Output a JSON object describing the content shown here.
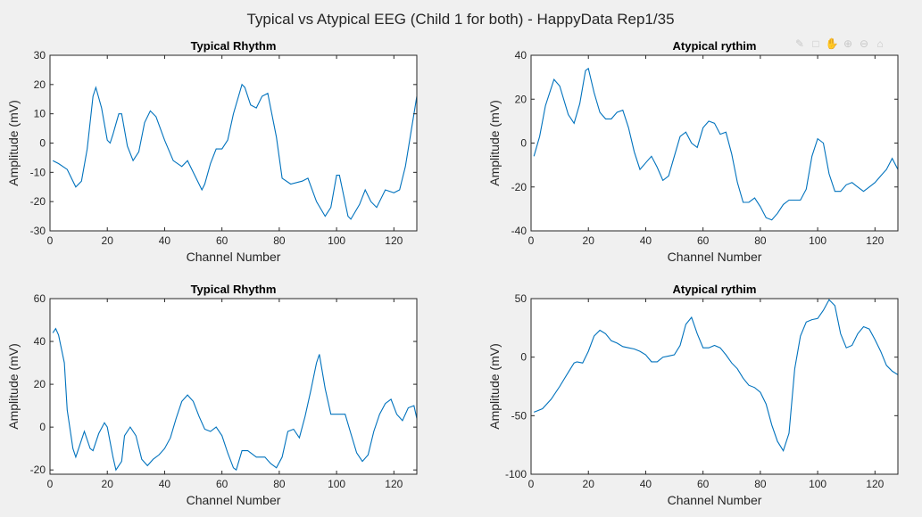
{
  "figure": {
    "title": "Typical vs Atypical EEG (Child 1 for both) - HappyData Rep1/35"
  },
  "toolbar": {
    "icons": [
      "brush-icon",
      "datatip-icon",
      "pan-icon",
      "zoom-in-icon",
      "zoom-out-icon",
      "home-icon"
    ]
  },
  "colors": {
    "line": "#0072bd",
    "axes_bg": "#ffffff",
    "figure_bg": "#f0f0f0"
  },
  "chart_data": [
    {
      "type": "line",
      "title": "Typical Rhythm",
      "xlabel": "Channel Number",
      "ylabel": "Amplitude (mV)",
      "xlim": [
        0,
        128
      ],
      "ylim": [
        -30,
        30
      ],
      "xticks": [
        0,
        20,
        40,
        60,
        80,
        100,
        120
      ],
      "yticks": [
        -30,
        -20,
        -10,
        0,
        10,
        20,
        30
      ],
      "series": [
        {
          "x": [
            1,
            3,
            6,
            9,
            11,
            13,
            15,
            16,
            18,
            20,
            21,
            22,
            24,
            25,
            27,
            29,
            31,
            33,
            35,
            37,
            40,
            43,
            46,
            48,
            50,
            53,
            54,
            56,
            58,
            60,
            62,
            64,
            67,
            68,
            70,
            72,
            74,
            76,
            79,
            81,
            84,
            88,
            90,
            93,
            96,
            98,
            100,
            101,
            104,
            105,
            108,
            110,
            112,
            114,
            117,
            120,
            122,
            124,
            126,
            128
          ],
          "y": [
            -6,
            -7,
            -9,
            -15,
            -13,
            -2,
            16,
            19,
            12,
            1,
            0,
            3,
            10,
            10,
            -1,
            -6,
            -3,
            7,
            11,
            9,
            1,
            -6,
            -8,
            -6,
            -10,
            -16,
            -14,
            -7,
            -2,
            -2,
            1,
            10,
            20,
            19,
            13,
            12,
            16,
            17,
            2,
            -12,
            -14,
            -13,
            -12,
            -20,
            -25,
            -22,
            -11,
            -11,
            -25,
            -26,
            -21,
            -16,
            -20,
            -22,
            -16,
            -17,
            -16,
            -8,
            4,
            16
          ]
        }
      ]
    },
    {
      "type": "line",
      "title": "Atypical rythim",
      "xlabel": "Channel Number",
      "ylabel": "Amplitude (mV)",
      "xlim": [
        0,
        128
      ],
      "ylim": [
        -40,
        40
      ],
      "xticks": [
        0,
        20,
        40,
        60,
        80,
        100,
        120
      ],
      "yticks": [
        -40,
        -20,
        0,
        20,
        40
      ],
      "series": [
        {
          "x": [
            1,
            3,
            5,
            8,
            10,
            13,
            15,
            17,
            19,
            20,
            22,
            24,
            26,
            28,
            30,
            32,
            34,
            36,
            38,
            40,
            42,
            44,
            46,
            48,
            50,
            52,
            54,
            56,
            58,
            60,
            62,
            64,
            66,
            68,
            70,
            72,
            74,
            76,
            78,
            80,
            82,
            84,
            86,
            88,
            90,
            94,
            96,
            98,
            100,
            102,
            104,
            106,
            108,
            110,
            112,
            114,
            116,
            118,
            120,
            122,
            124,
            126,
            128
          ],
          "y": [
            -6,
            3,
            17,
            29,
            26,
            13,
            9,
            18,
            33,
            34,
            23,
            14,
            11,
            11,
            14,
            15,
            7,
            -4,
            -12,
            -9,
            -6,
            -11,
            -17,
            -15,
            -6,
            3,
            5,
            0,
            -2,
            7,
            10,
            9,
            4,
            5,
            -5,
            -18,
            -27,
            -27,
            -25,
            -29,
            -34,
            -35,
            -32,
            -28,
            -26,
            -26,
            -21,
            -6,
            2,
            0,
            -14,
            -22,
            -22,
            -19,
            -18,
            -20,
            -22,
            -20,
            -18,
            -15,
            -12,
            -7,
            -12
          ]
        }
      ]
    },
    {
      "type": "line",
      "title": "Typical Rhythm",
      "xlabel": "Channel Number",
      "ylabel": "Amplitude (mV)",
      "xlim": [
        0,
        128
      ],
      "ylim": [
        -22,
        60
      ],
      "xticks": [
        0,
        20,
        40,
        60,
        80,
        100,
        120
      ],
      "yticks": [
        -20,
        0,
        20,
        40,
        60
      ],
      "series": [
        {
          "x": [
            1,
            2,
            3,
            5,
            6,
            8,
            9,
            11,
            12,
            14,
            15,
            17,
            19,
            20,
            22,
            23,
            25,
            26,
            28,
            30,
            32,
            34,
            36,
            38,
            40,
            42,
            44,
            46,
            48,
            50,
            52,
            54,
            56,
            58,
            60,
            62,
            64,
            65,
            67,
            69,
            72,
            75,
            77,
            79,
            81,
            83,
            85,
            87,
            89,
            91,
            93,
            94,
            96,
            98,
            101,
            103,
            105,
            107,
            109,
            111,
            113,
            115,
            117,
            119,
            121,
            123,
            125,
            127,
            128
          ],
          "y": [
            44,
            46,
            43,
            30,
            8,
            -10,
            -14,
            -6,
            -2,
            -10,
            -11,
            -3,
            2,
            0,
            -14,
            -20,
            -16,
            -4,
            0,
            -4,
            -15,
            -18,
            -15,
            -13,
            -10,
            -5,
            4,
            12,
            15,
            12,
            5,
            -1,
            -2,
            0,
            -4,
            -12,
            -19,
            -20,
            -11,
            -11,
            -14,
            -14,
            -17,
            -19,
            -14,
            -2,
            -1,
            -5,
            5,
            17,
            30,
            34,
            18,
            6,
            6,
            6,
            -3,
            -12,
            -16,
            -13,
            -2,
            6,
            11,
            13,
            6,
            3,
            9,
            10,
            4
          ]
        }
      ]
    },
    {
      "type": "line",
      "title": "Atypical rythim",
      "xlabel": "Channel Number",
      "ylabel": "Amplitude (mV)",
      "xlim": [
        0,
        128
      ],
      "ylim": [
        -100,
        50
      ],
      "xticks": [
        0,
        20,
        40,
        60,
        80,
        100,
        120
      ],
      "yticks": [
        -100,
        -50,
        0,
        50
      ],
      "series": [
        {
          "x": [
            1,
            2,
            4,
            7,
            10,
            13,
            15,
            16,
            18,
            20,
            22,
            24,
            26,
            28,
            30,
            32,
            34,
            36,
            38,
            40,
            42,
            44,
            46,
            48,
            50,
            52,
            54,
            56,
            58,
            60,
            62,
            64,
            66,
            68,
            70,
            72,
            74,
            76,
            78,
            80,
            82,
            84,
            86,
            88,
            90,
            92,
            94,
            96,
            98,
            100,
            102,
            104,
            106,
            108,
            110,
            112,
            114,
            116,
            118,
            120,
            122,
            124,
            126,
            128
          ],
          "y": [
            -47,
            -46,
            -44,
            -36,
            -25,
            -13,
            -5,
            -4,
            -5,
            5,
            18,
            23,
            20,
            14,
            12,
            9,
            8,
            7,
            5,
            2,
            -4,
            -4,
            0,
            1,
            2,
            10,
            28,
            34,
            20,
            8,
            8,
            10,
            8,
            2,
            -5,
            -10,
            -18,
            -24,
            -26,
            -30,
            -40,
            -58,
            -72,
            -80,
            -65,
            -10,
            18,
            30,
            32,
            33,
            40,
            49,
            44,
            20,
            8,
            10,
            20,
            26,
            24,
            15,
            5,
            -7,
            -12,
            -15
          ]
        }
      ]
    }
  ]
}
